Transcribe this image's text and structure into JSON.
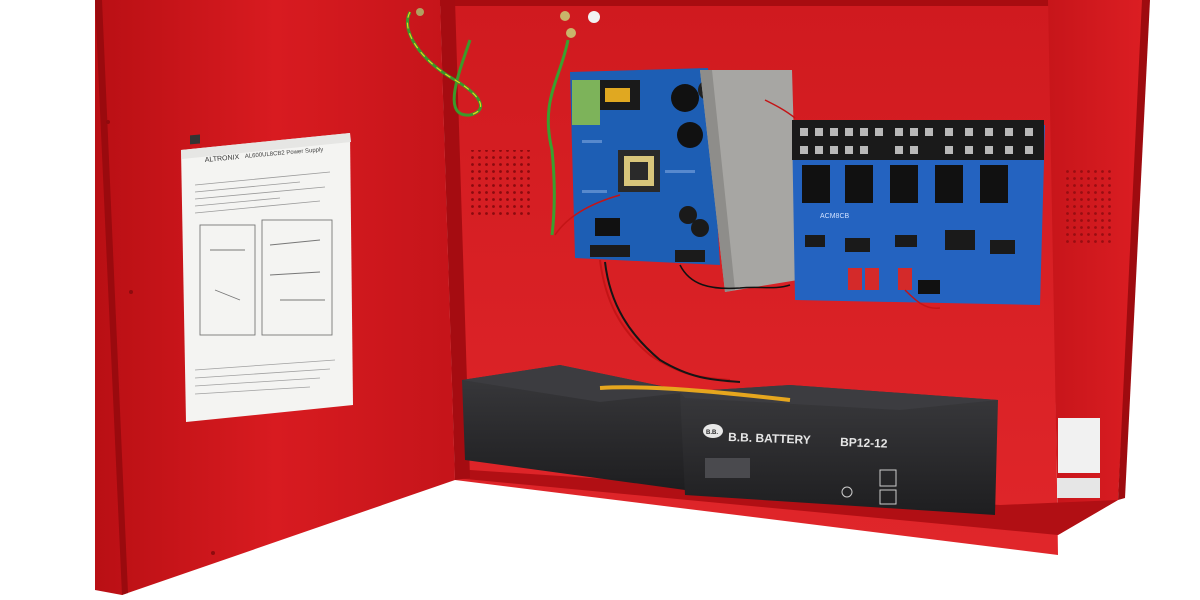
{
  "door_document": {
    "brand": "ALTRONIX",
    "title": "AL600UL8CB2 Power Supply"
  },
  "battery": {
    "brand": "B.B. BATTERY",
    "model": "BP12-12",
    "logo_text": "B.B."
  },
  "board": {
    "label": "ACM8CB"
  },
  "colors": {
    "enclosure_red": "#d8161c",
    "pcb_blue": "#1d5eb4",
    "battery_black": "#2a2a2c"
  }
}
